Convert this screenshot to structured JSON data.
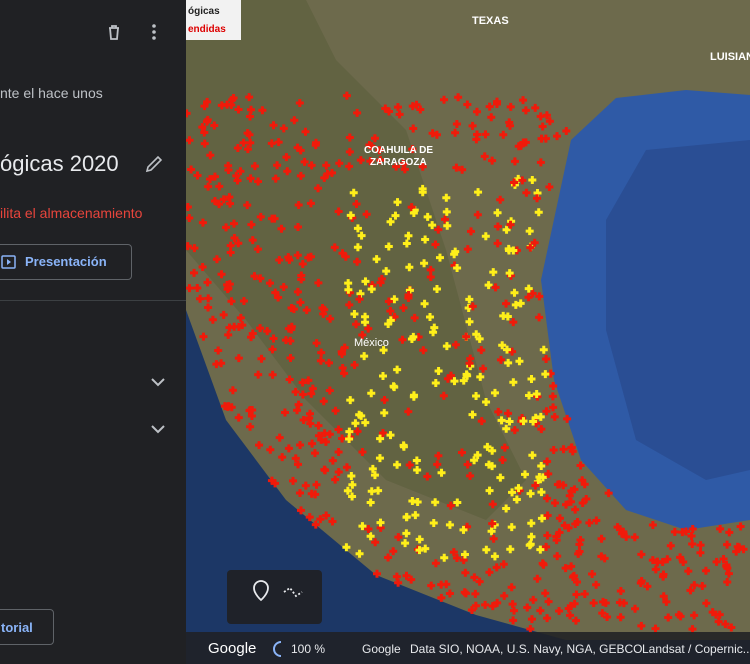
{
  "panel": {
    "subtitle": "nte el hace unos",
    "title": "ógicas 2020",
    "warning": "ilita el almacenamiento",
    "present_button": "Presentación",
    "tutorial_button": "torial"
  },
  "legend": {
    "line1": "ógicas",
    "line2": "endidas"
  },
  "map_labels": {
    "texas": "TEXAS",
    "louisiana": "LUISIAN",
    "coahuila_1": "COAHUILA DE",
    "coahuila_2": "ZARAGOZA",
    "mexico": "México"
  },
  "status_bar": {
    "logo": "Google",
    "zoom": "100 %",
    "provider": "Google",
    "data": "Data SIO, NOAA, U.S. Navy, NGA, GEBCO",
    "imagery": "Landsat / Copernic..."
  }
}
